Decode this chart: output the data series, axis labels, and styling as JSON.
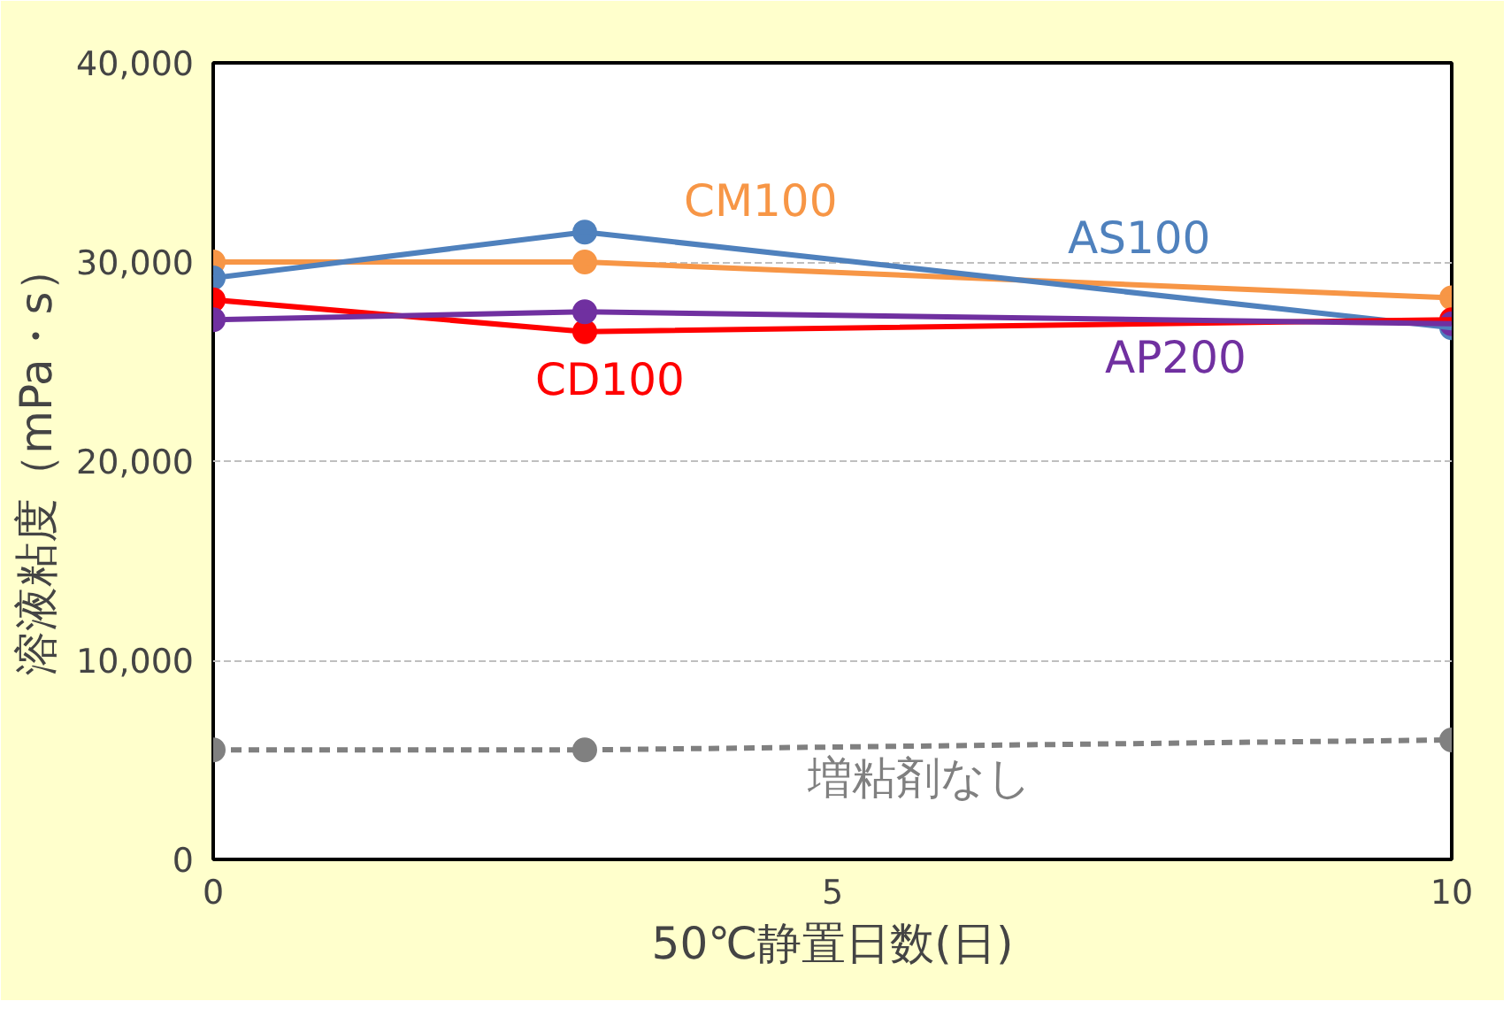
{
  "chart_data": {
    "type": "line",
    "xlabel": "50℃静置日数(日)",
    "ylabel": "溶液粘度（mPa・s）",
    "x": [
      0,
      3,
      10
    ],
    "series": [
      {
        "name": "CM100",
        "color": "#f79646",
        "values": [
          30000,
          30000,
          28200
        ]
      },
      {
        "name": "AS100",
        "color": "#4f81bd",
        "values": [
          29200,
          31500,
          26700
        ]
      },
      {
        "name": "CD100",
        "color": "#ff0000",
        "values": [
          28100,
          26500,
          27100
        ]
      },
      {
        "name": "AP200",
        "color": "#7030a0",
        "values": [
          27100,
          27500,
          26900
        ]
      },
      {
        "name": "増粘剤なし",
        "color": "#808080",
        "values": [
          5500,
          5500,
          6000
        ],
        "line_style": "dashed"
      }
    ],
    "xlim": [
      0,
      10
    ],
    "xticks": [
      0,
      5,
      10
    ],
    "ylim": [
      0,
      40000
    ],
    "yticks": [
      0,
      {
        "value": 10000,
        "label": "10,000"
      },
      {
        "value": 20000,
        "label": "20,000"
      },
      {
        "value": 30000,
        "label": "30,000"
      },
      {
        "value": 40000,
        "label": "40,000"
      }
    ],
    "grid": "y",
    "marker": "circle",
    "line_style": "solid",
    "legend": false
  }
}
